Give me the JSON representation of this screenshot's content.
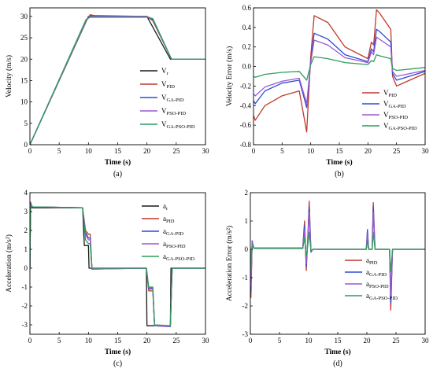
{
  "chart_data": [
    {
      "type": "line",
      "panel_label": "(a)",
      "xlabel": "Time (s)",
      "ylabel": "Velocity (m/s)",
      "xlim": [
        0,
        30
      ],
      "ylim": [
        0,
        32
      ],
      "xticks": [
        0,
        5,
        10,
        15,
        20,
        25,
        30
      ],
      "yticks": [
        0,
        5,
        10,
        15,
        20,
        25,
        30
      ],
      "legend_position": "center-right",
      "series": [
        {
          "name": "V",
          "sub": "r",
          "color": "#1a1a1a",
          "x": [
            0,
            10,
            20,
            24,
            30
          ],
          "y": [
            0,
            30,
            30,
            20,
            20
          ]
        },
        {
          "name": "V",
          "sub": "PID",
          "color": "#c0392b",
          "x": [
            0,
            9.6,
            10.3,
            11,
            20,
            21,
            24.2,
            30
          ],
          "y": [
            0,
            29,
            30.4,
            30.2,
            30,
            29,
            20,
            20
          ]
        },
        {
          "name": "V",
          "sub": "GA-PID",
          "color": "#2c4bd6",
          "x": [
            0,
            9.6,
            10.3,
            11,
            20,
            21,
            24.2,
            30
          ],
          "y": [
            0,
            29,
            30.2,
            30.1,
            30,
            29.2,
            20,
            20
          ]
        },
        {
          "name": "V",
          "sub": "PSO-PID",
          "color": "#9b59d0",
          "x": [
            0,
            9.6,
            10.3,
            11,
            20,
            21,
            24.2,
            30
          ],
          "y": [
            0,
            29,
            30.1,
            30,
            30,
            29.4,
            20,
            20
          ]
        },
        {
          "name": "V",
          "sub": "GA-PSO-PID",
          "color": "#2e9e5b",
          "x": [
            0,
            9.6,
            10.3,
            11,
            20,
            21,
            24.2,
            30
          ],
          "y": [
            0,
            29.3,
            29.8,
            29.8,
            29.8,
            29.5,
            20,
            20
          ]
        }
      ]
    },
    {
      "type": "line",
      "panel_label": "(b)",
      "xlabel": "Time (s)",
      "ylabel": "Velocity Error (m/s)",
      "xlim": [
        0,
        30
      ],
      "ylim": [
        -0.8,
        0.6
      ],
      "xticks": [
        0,
        5,
        10,
        15,
        20,
        25,
        30
      ],
      "yticks": [
        -0.8,
        -0.6,
        -0.4,
        -0.2,
        0.0,
        0.2,
        0.4,
        0.6
      ],
      "legend_position": "bottom-right",
      "series": [
        {
          "name": "V",
          "sub": "PID",
          "color": "#c0392b",
          "x": [
            0,
            0.3,
            2,
            5,
            8,
            9.3,
            10,
            10.6,
            13,
            16,
            20,
            20.6,
            21,
            21.5,
            22,
            24,
            24.3,
            25,
            30
          ],
          "y": [
            -0.5,
            -0.55,
            -0.4,
            -0.3,
            -0.25,
            -0.67,
            0.1,
            0.52,
            0.45,
            0.2,
            0.08,
            0.25,
            0.22,
            0.58,
            0.55,
            0.38,
            -0.1,
            -0.2,
            -0.07
          ]
        },
        {
          "name": "V",
          "sub": "GA-PID",
          "color": "#2c4bd6",
          "x": [
            0,
            0.3,
            2,
            5,
            8,
            9.3,
            10,
            10.6,
            13,
            16,
            20,
            20.6,
            21,
            21.5,
            22,
            24,
            24.3,
            25,
            30
          ],
          "y": [
            -0.35,
            -0.38,
            -0.25,
            -0.17,
            -0.14,
            -0.42,
            0.05,
            0.34,
            0.28,
            0.12,
            0.05,
            0.18,
            0.15,
            0.38,
            0.36,
            0.25,
            -0.07,
            -0.14,
            -0.05
          ]
        },
        {
          "name": "V",
          "sub": "PSO-PID",
          "color": "#9b59d0",
          "x": [
            0,
            0.3,
            2,
            5,
            8,
            9.3,
            10,
            10.6,
            13,
            16,
            20,
            20.6,
            21,
            21.5,
            22,
            24,
            24.3,
            25,
            30
          ],
          "y": [
            -0.28,
            -0.3,
            -0.21,
            -0.15,
            -0.12,
            -0.38,
            0.04,
            0.27,
            0.22,
            0.09,
            0.04,
            0.15,
            0.12,
            0.3,
            0.28,
            0.2,
            -0.05,
            -0.1,
            -0.04
          ]
        },
        {
          "name": "V",
          "sub": "GA-PSO-PID",
          "color": "#2e9e5b",
          "x": [
            0,
            0.3,
            2,
            5,
            8,
            9.3,
            10,
            10.6,
            13,
            16,
            20,
            20.6,
            21,
            21.5,
            22,
            24,
            24.3,
            25,
            30
          ],
          "y": [
            -0.1,
            -0.11,
            -0.08,
            -0.06,
            -0.05,
            -0.14,
            0.02,
            0.1,
            0.08,
            0.04,
            0.02,
            0.06,
            0.05,
            0.12,
            0.11,
            0.08,
            -0.02,
            -0.04,
            -0.01
          ]
        }
      ]
    },
    {
      "type": "line",
      "panel_label": "(c)",
      "xlabel": "Time (s)",
      "ylabel": "Acceleration (m/s²)",
      "xlim": [
        0,
        30
      ],
      "ylim": [
        -3.5,
        4
      ],
      "xticks": [
        0,
        5,
        10,
        15,
        20,
        25,
        30
      ],
      "yticks": [
        -3,
        -2,
        -1,
        0,
        1,
        2,
        3,
        4
      ],
      "legend_position": "top-right",
      "series": [
        {
          "name": "a",
          "sub": "r",
          "color": "#1a1a1a",
          "x": [
            0,
            0.1,
            9,
            9.3,
            10,
            10.1,
            19.9,
            20,
            24,
            24.1,
            30
          ],
          "y": [
            0,
            3.2,
            3.2,
            1.2,
            1.2,
            0,
            0,
            -3.05,
            -3.05,
            0,
            0
          ]
        },
        {
          "name": "a",
          "sub": "PID",
          "color": "#c0392b",
          "x": [
            0,
            0.1,
            0.4,
            9,
            9.5,
            10,
            10.3,
            10.6,
            19.9,
            20.3,
            21,
            21.3,
            24,
            24.3,
            30
          ],
          "y": [
            0,
            3.5,
            3.25,
            3.2,
            2,
            1.8,
            1.8,
            0,
            0,
            -1.2,
            -1.2,
            -3,
            -3.1,
            0,
            0
          ]
        },
        {
          "name": "a",
          "sub": "GA-PID",
          "color": "#2c4bd6",
          "x": [
            0,
            0.1,
            0.4,
            9,
            9.5,
            10,
            10.3,
            10.6,
            19.9,
            20.3,
            21,
            21.3,
            24,
            24.3,
            30
          ],
          "y": [
            0,
            3.45,
            3.25,
            3.2,
            1.9,
            1.6,
            1.6,
            -0.05,
            0,
            -1.1,
            -1.1,
            -3.05,
            -3.1,
            0,
            0
          ]
        },
        {
          "name": "a",
          "sub": "PSO-PID",
          "color": "#9b59d0",
          "x": [
            0,
            0.1,
            0.4,
            9,
            9.5,
            10,
            10.3,
            10.6,
            19.9,
            20.3,
            21,
            21.3,
            24,
            24.3,
            30
          ],
          "y": [
            0,
            3.4,
            3.25,
            3.2,
            1.8,
            1.5,
            1.5,
            -0.05,
            0,
            -1.05,
            -1.05,
            -3.05,
            -3.1,
            0,
            0
          ]
        },
        {
          "name": "a",
          "sub": "GA-PSO-PID",
          "color": "#2e9e5b",
          "x": [
            0,
            0.1,
            0.4,
            9,
            9.5,
            10,
            10.3,
            10.6,
            19.9,
            20.3,
            21,
            21.3,
            24,
            24.3,
            30
          ],
          "y": [
            0,
            3.3,
            3.25,
            3.2,
            1.5,
            1.3,
            1.3,
            0,
            0,
            -1,
            -1,
            -3,
            -3.05,
            0,
            0
          ]
        }
      ]
    },
    {
      "type": "line",
      "panel_label": "(d)",
      "xlabel": "Time (s)",
      "ylabel": "Acceleration Error (m/s²)",
      "xlim": [
        0,
        30
      ],
      "ylim": [
        -3,
        2
      ],
      "xticks": [
        0,
        5,
        10,
        15,
        20,
        25,
        30
      ],
      "yticks": [
        -3,
        -2,
        -1,
        0,
        1,
        2
      ],
      "legend_position": "bottom-right",
      "series": [
        {
          "name": "a",
          "sub": "PID",
          "color": "#c0392b",
          "x": [
            0,
            0.1,
            0.3,
            0.6,
            9,
            9.3,
            9.6,
            9.9,
            10.1,
            10.4,
            10.7,
            19.9,
            20.1,
            20.3,
            20.9,
            21.1,
            21.4,
            23.9,
            24.1,
            24.4,
            30
          ],
          "y": [
            0,
            -1.7,
            0.2,
            0.05,
            0.05,
            1.0,
            -0.75,
            0.6,
            1.7,
            -0.1,
            0,
            0,
            0.65,
            0,
            0,
            1.65,
            0,
            0,
            -2.15,
            0,
            0
          ]
        },
        {
          "name": "a",
          "sub": "GA-PID",
          "color": "#2c4bd6",
          "x": [
            0,
            0.1,
            0.3,
            0.6,
            9,
            9.3,
            9.6,
            9.9,
            10.1,
            10.4,
            10.7,
            19.9,
            20.1,
            20.3,
            20.9,
            21.1,
            21.4,
            23.9,
            24.1,
            24.4,
            30
          ],
          "y": [
            0,
            -1.5,
            0.3,
            0.05,
            0.05,
            0.85,
            -0.6,
            0.5,
            1.5,
            -0.1,
            0,
            0,
            0.7,
            0,
            0,
            1.5,
            0,
            0,
            -1.9,
            0,
            0
          ]
        },
        {
          "name": "a",
          "sub": "PSO-PID",
          "color": "#9b59d0",
          "x": [
            0,
            0.1,
            0.3,
            0.6,
            9,
            9.3,
            9.6,
            9.9,
            10.1,
            10.4,
            10.7,
            19.9,
            20.1,
            20.3,
            20.9,
            21.1,
            21.4,
            23.9,
            24.1,
            24.4,
            30
          ],
          "y": [
            0,
            -1.3,
            0.25,
            0.05,
            0.05,
            0.7,
            -0.5,
            0.4,
            1.3,
            -0.08,
            0,
            0,
            0.55,
            0,
            0,
            1.3,
            0,
            0,
            -1.6,
            0,
            0
          ]
        },
        {
          "name": "a",
          "sub": "GA-PSO-PID",
          "color": "#2e9e5b",
          "x": [
            0,
            0.1,
            0.3,
            0.6,
            9,
            9.3,
            9.6,
            9.9,
            10.1,
            10.4,
            10.7,
            19.9,
            20.1,
            20.3,
            20.9,
            21.1,
            21.4,
            23.9,
            24.1,
            24.4,
            30
          ],
          "y": [
            0,
            -0.6,
            0.15,
            0.03,
            0.03,
            0.4,
            -0.25,
            0.2,
            0.6,
            -0.05,
            0,
            0,
            0.3,
            0,
            0,
            0.6,
            0,
            0,
            -0.8,
            0,
            0
          ]
        }
      ]
    }
  ]
}
